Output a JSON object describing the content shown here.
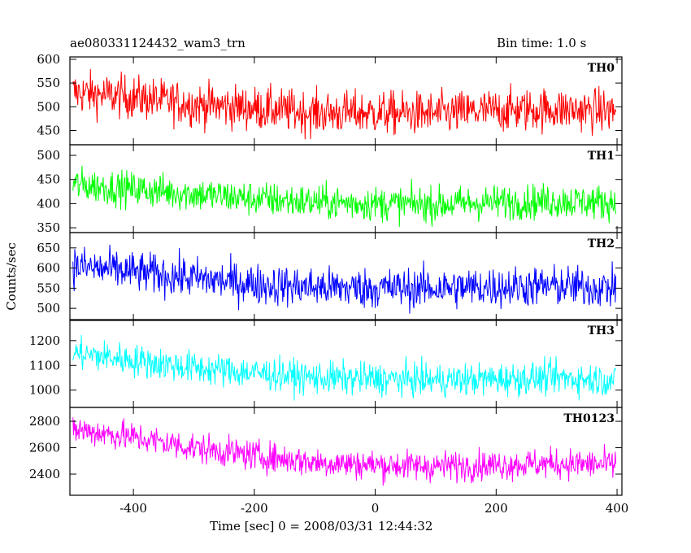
{
  "header": {
    "title": "ae080331124432_wam3_trn",
    "bin_time": "Bin time: 1.0 s"
  },
  "colors": {
    "TH0": "#ff0000",
    "TH1": "#00ff00",
    "TH2": "#0000ff",
    "TH3": "#00ffff",
    "TH0123": "#ff00ff",
    "axes": "#000000"
  },
  "chart_data": {
    "type": "line",
    "xlabel": "Time [sec] 0 = 2008/03/31 12:44:32",
    "ylabel": "Counts/sec",
    "xlim": [
      -505,
      408
    ],
    "x_ticks": [
      -400,
      -200,
      0,
      200,
      400
    ],
    "x_range_data": [
      -500,
      398
    ],
    "grid": false,
    "panels": [
      {
        "name": "TH0",
        "ylim": [
          420,
          605
        ],
        "y_ticks": [
          450,
          500,
          550,
          600
        ],
        "trend": [
          [
            -500,
            530
          ],
          [
            -400,
            520
          ],
          [
            -300,
            505
          ],
          [
            -200,
            497
          ],
          [
            -100,
            487
          ],
          [
            0,
            487
          ],
          [
            100,
            485
          ],
          [
            200,
            492
          ],
          [
            300,
            495
          ],
          [
            398,
            490
          ]
        ],
        "noise": 38,
        "min_clip": 422,
        "max_clip": 603
      },
      {
        "name": "TH1",
        "ylim": [
          340,
          522
        ],
        "y_ticks": [
          350,
          400,
          450,
          500
        ],
        "trend": [
          [
            -500,
            440
          ],
          [
            -400,
            430
          ],
          [
            -300,
            420
          ],
          [
            -200,
            410
          ],
          [
            -100,
            403
          ],
          [
            0,
            400
          ],
          [
            100,
            398
          ],
          [
            200,
            403
          ],
          [
            300,
            405
          ],
          [
            398,
            402
          ]
        ],
        "noise": 30,
        "min_clip": 342,
        "max_clip": 520
      },
      {
        "name": "TH2",
        "ylim": [
          470,
          688
        ],
        "y_ticks": [
          500,
          550,
          600,
          650
        ],
        "trend": [
          [
            -500,
            605
          ],
          [
            -400,
            590
          ],
          [
            -300,
            575
          ],
          [
            -200,
            560
          ],
          [
            -100,
            552
          ],
          [
            0,
            550
          ],
          [
            100,
            550
          ],
          [
            200,
            553
          ],
          [
            300,
            555
          ],
          [
            398,
            550
          ]
        ],
        "noise": 42,
        "min_clip": 472,
        "max_clip": 686
      },
      {
        "name": "TH3",
        "ylim": [
          930,
          1285
        ],
        "y_ticks": [
          1000,
          1100,
          1200
        ],
        "trend": [
          [
            -500,
            1150
          ],
          [
            -400,
            1120
          ],
          [
            -300,
            1090
          ],
          [
            -200,
            1070
          ],
          [
            -100,
            1050
          ],
          [
            0,
            1045
          ],
          [
            100,
            1040
          ],
          [
            200,
            1045
          ],
          [
            300,
            1050
          ],
          [
            398,
            1040
          ]
        ],
        "noise": 55,
        "min_clip": 933,
        "max_clip": 1283
      },
      {
        "name": "TH0123",
        "ylim": [
          2240,
          2905
        ],
        "y_ticks": [
          2400,
          2600,
          2800
        ],
        "trend": [
          [
            -500,
            2740
          ],
          [
            -400,
            2680
          ],
          [
            -300,
            2600
          ],
          [
            -200,
            2540
          ],
          [
            -100,
            2490
          ],
          [
            0,
            2470
          ],
          [
            100,
            2460
          ],
          [
            200,
            2470
          ],
          [
            300,
            2480
          ],
          [
            398,
            2470
          ]
        ],
        "noise": 95,
        "min_clip": 2245,
        "max_clip": 2900
      }
    ]
  }
}
